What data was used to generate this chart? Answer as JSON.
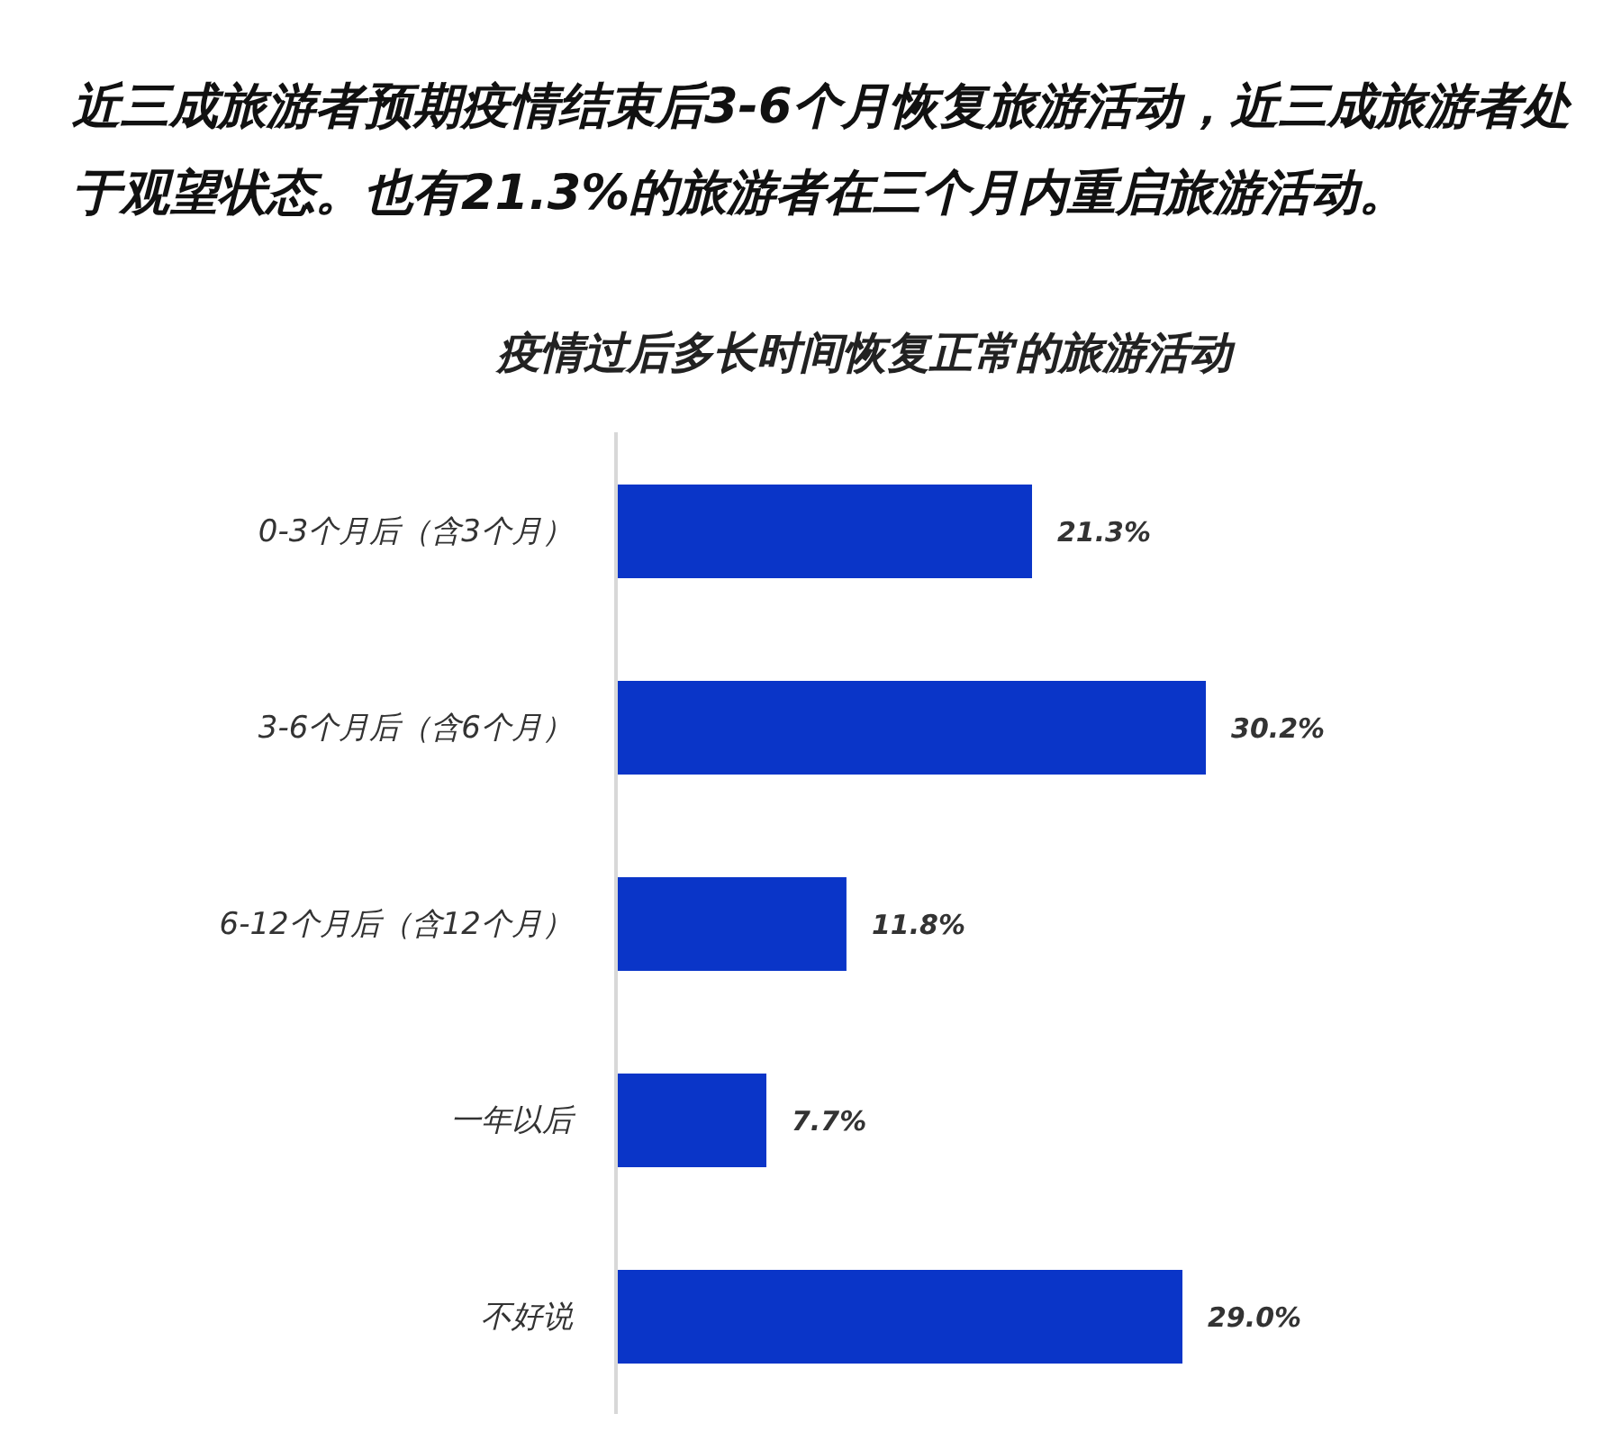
{
  "chart_data": {
    "type": "bar",
    "orientation": "horizontal",
    "title": "近三成旅游者预期疫情结束后3-6个月恢复旅游活动，近三成旅游者处于观望状态。也有21.3%的旅游者在三个月内重启旅游活动。",
    "subtitle": "疫情过后多长时间恢复正常的旅游活动",
    "categories": [
      "0-3个月后（含3个月）",
      "3-6个月后（含6个月）",
      "6-12个月后（含12个月）",
      "一年以后",
      "不好说"
    ],
    "values": [
      21.3,
      30.2,
      11.8,
      7.7,
      29.0
    ],
    "value_labels": [
      "21.3%",
      "30.2%",
      "11.8%",
      "7.7%",
      "29.0%"
    ],
    "color": "#0a35c8",
    "grid": false,
    "legend": false
  }
}
